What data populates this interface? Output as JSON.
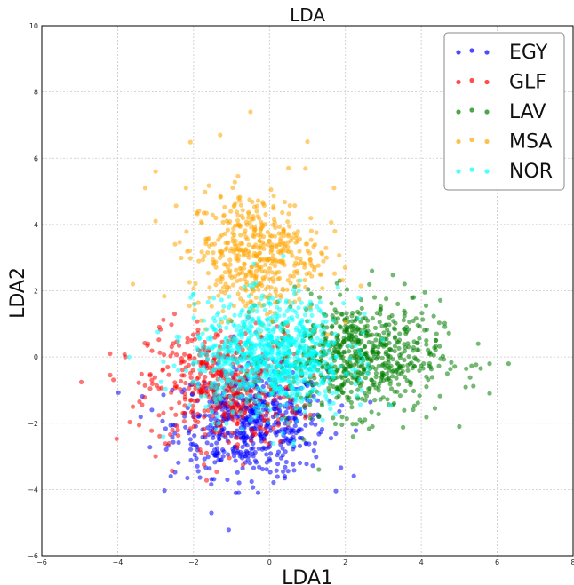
{
  "chart_data": {
    "type": "scatter",
    "title": "LDA",
    "xlabel": "LDA1",
    "ylabel": "LDA2",
    "xlim": [
      -6,
      8
    ],
    "ylim": [
      -6,
      10
    ],
    "xticks": [
      -6,
      -4,
      -2,
      0,
      2,
      4,
      6,
      8
    ],
    "yticks": [
      -6,
      -4,
      -2,
      0,
      2,
      4,
      6,
      8,
      10
    ],
    "grid": true,
    "legend_position": "top-right",
    "series": [
      {
        "name": "EGY",
        "color": "#0000ff",
        "cluster": {
          "cx": -0.5,
          "cy": -2.0,
          "sx": 1.0,
          "sy": 0.8
        },
        "points_total": 600,
        "points": [
          [
            -0.8,
            -3.8
          ],
          [
            -0.3,
            -4.1
          ],
          [
            0.4,
            -3.6
          ],
          [
            -1.9,
            -3.3
          ],
          [
            -2.6,
            -3.6
          ],
          [
            1.2,
            -2.6
          ],
          [
            -3.1,
            -1.6
          ],
          [
            -1.5,
            -2.9
          ],
          [
            0.8,
            -3.2
          ],
          [
            -0.2,
            -2.4
          ]
        ]
      },
      {
        "name": "GLF",
        "color": "#ff0000",
        "cluster": {
          "cx": -1.2,
          "cy": -0.9,
          "sx": 1.0,
          "sy": 0.9
        },
        "points_total": 500,
        "points": [
          [
            -4.2,
            0.1
          ],
          [
            -3.8,
            0.0
          ],
          [
            -3.6,
            -1.5
          ],
          [
            -3.1,
            -0.7
          ],
          [
            -2.9,
            0.9
          ],
          [
            -3.0,
            -3.0
          ],
          [
            -2.5,
            1.3
          ],
          [
            -3.2,
            0.4
          ],
          [
            -2.0,
            -1.8
          ],
          [
            -1.5,
            -0.4
          ]
        ]
      },
      {
        "name": "LAV",
        "color": "#008000",
        "cluster": {
          "cx": 2.3,
          "cy": 0.0,
          "sx": 1.1,
          "sy": 0.85
        },
        "points_total": 700,
        "points": [
          [
            6.3,
            -0.2
          ],
          [
            5.8,
            -0.2
          ],
          [
            5.5,
            0.4
          ],
          [
            5.8,
            -1.1
          ],
          [
            5.0,
            -2.1
          ],
          [
            4.2,
            0.1
          ],
          [
            3.8,
            1.8
          ],
          [
            2.7,
            2.6
          ],
          [
            2.2,
            -2.4
          ],
          [
            1.3,
            -3.4
          ]
        ]
      },
      {
        "name": "MSA",
        "color": "#ffa500",
        "cluster": {
          "cx": -0.4,
          "cy": 3.1,
          "sx": 0.85,
          "sy": 0.95
        },
        "points_total": 500,
        "points": [
          [
            -0.5,
            7.4
          ],
          [
            -1.3,
            6.7
          ],
          [
            1.0,
            6.5
          ],
          [
            -3.0,
            5.6
          ],
          [
            0.5,
            5.7
          ],
          [
            -3.6,
            2.2
          ],
          [
            -2.2,
            5.1
          ],
          [
            1.7,
            5.1
          ],
          [
            -3.0,
            4.1
          ],
          [
            1.5,
            3.0
          ]
        ]
      },
      {
        "name": "NOR",
        "color": "#00ffff",
        "cluster": {
          "cx": 0.0,
          "cy": 0.0,
          "sx": 1.0,
          "sy": 0.85
        },
        "points_total": 900,
        "points": [
          [
            -3.7,
            0.0
          ],
          [
            -2.8,
            -2.4
          ],
          [
            -2.0,
            1.9
          ],
          [
            1.8,
            2.1
          ],
          [
            2.5,
            1.3
          ],
          [
            -1.4,
            -2.2
          ],
          [
            1.4,
            -1.9
          ],
          [
            -2.4,
            -0.4
          ],
          [
            0.2,
            1.5
          ],
          [
            -0.6,
            0.9
          ]
        ]
      }
    ]
  }
}
